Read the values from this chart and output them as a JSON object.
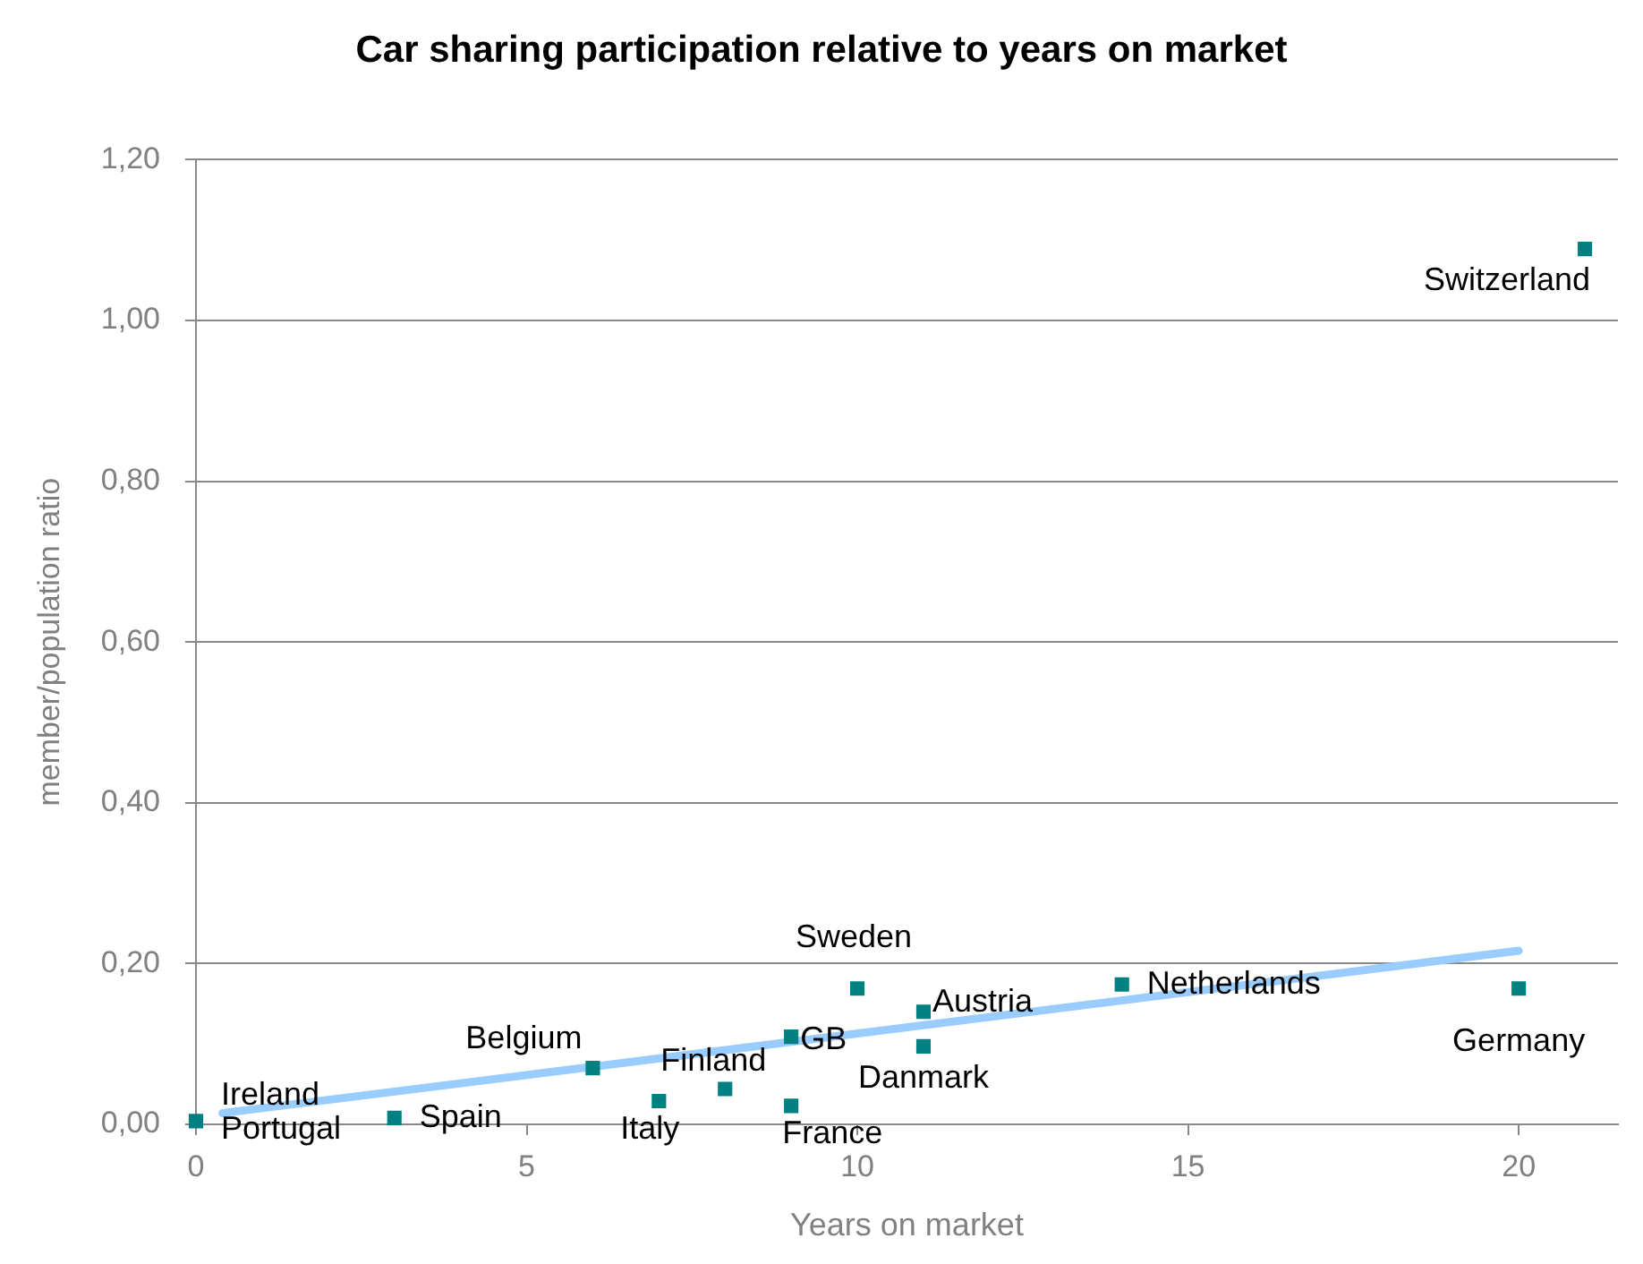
{
  "chart_data": {
    "type": "scatter",
    "title": "Car sharing participation relative to years on market",
    "xlabel": "Years on market",
    "ylabel": "member/population ratio",
    "series": [
      {
        "type": "scatter",
        "color": "#008080",
        "x": [
          0,
          3,
          6,
          7,
          8,
          9,
          9,
          10,
          11,
          11,
          14,
          20,
          21
        ],
        "values": [
          0.004,
          0.008,
          0.07,
          0.029,
          0.044,
          0.109,
          0.023,
          0.169,
          0.14,
          0.097,
          0.174,
          0.169,
          1.089
        ],
        "marker": "square"
      },
      {
        "type": "line",
        "color": "#99ccff",
        "x": [
          0.4,
          20
        ],
        "values": [
          0.014,
          0.216
        ],
        "marker": "none"
      }
    ],
    "annotations": [
      {
        "text": "Ireland",
        "x": 0,
        "y": 0.004
      },
      {
        "text": "Portugal",
        "x": 0,
        "y": 0.002
      },
      {
        "text": "Spain",
        "x": 3,
        "y": 0.008
      },
      {
        "text": "Belgium",
        "x": 6,
        "y": 0.07
      },
      {
        "text": "Italy",
        "x": 7,
        "y": 0.029
      },
      {
        "text": "Finland",
        "x": 8,
        "y": 0.044
      },
      {
        "text": "GB",
        "x": 9,
        "y": 0.109
      },
      {
        "text": "France",
        "x": 9,
        "y": 0.023
      },
      {
        "text": "Sweden",
        "x": 10,
        "y": 0.169
      },
      {
        "text": "Austria",
        "x": 11,
        "y": 0.14
      },
      {
        "text": "Danmark",
        "x": 11,
        "y": 0.097
      },
      {
        "text": "Netherlands",
        "x": 14,
        "y": 0.174
      },
      {
        "text": "Germany",
        "x": 20,
        "y": 0.169
      },
      {
        "text": "Switzerland",
        "x": 21,
        "y": 1.089
      }
    ],
    "xlim": [
      0,
      21.5
    ],
    "xticks": [
      0,
      5,
      10,
      15,
      20
    ],
    "ylim": [
      0,
      1.2
    ],
    "yticks": [
      {
        "value": 0,
        "label": "0,00"
      },
      {
        "value": 0.2,
        "label": "0,20"
      },
      {
        "value": 0.4,
        "label": "0,40"
      },
      {
        "value": 0.6,
        "label": "0,60"
      },
      {
        "value": 0.8,
        "label": "0,80"
      },
      {
        "value": 1,
        "label": "1,00"
      },
      {
        "value": 1.2,
        "label": "1,20"
      }
    ],
    "grid": "y",
    "legend": false
  }
}
